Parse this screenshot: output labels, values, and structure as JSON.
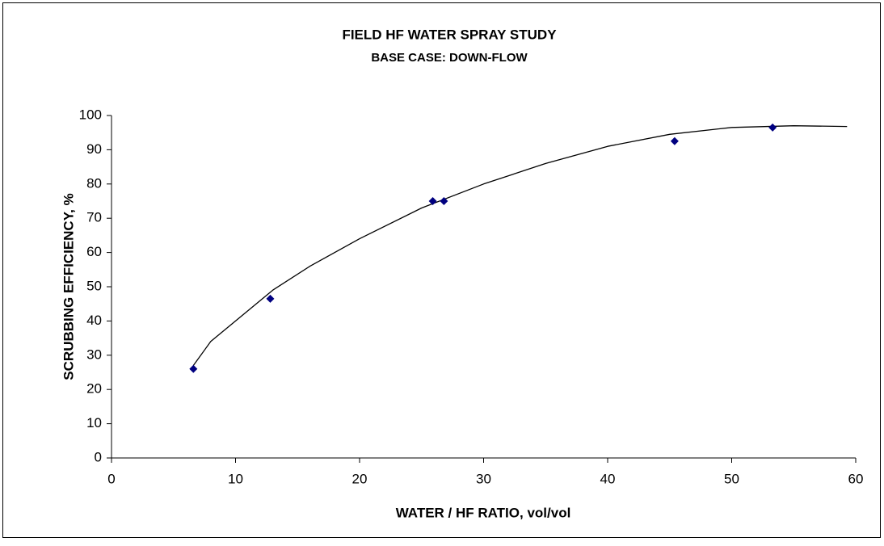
{
  "chart_data": {
    "type": "scatter",
    "title": "FIELD HF WATER SPRAY STUDY",
    "subtitle": "BASE CASE: DOWN-FLOW",
    "x_label": "WATER / HF RATIO, vol/vol",
    "y_label": "SCRUBBING EFFICIENCY, %",
    "x": [
      6.6,
      12.8,
      25.9,
      26.8,
      45.4,
      53.3
    ],
    "values": [
      26,
      46.5,
      75,
      75,
      92.5,
      96.5
    ],
    "color": "#000080",
    "trendline": {
      "x": [
        6.6,
        8,
        10,
        13,
        16,
        20,
        25,
        30,
        35,
        40,
        45,
        50,
        55,
        59.3
      ],
      "values": [
        27,
        34,
        40,
        49,
        56,
        64,
        73,
        80,
        86,
        91,
        94.5,
        96.5,
        97,
        96.8
      ],
      "color": "#000000"
    },
    "xlim": [
      0,
      60
    ],
    "xticks": [
      0,
      10,
      20,
      30,
      40,
      50,
      60
    ],
    "ylim": [
      0,
      100
    ],
    "yticks": [
      0,
      10,
      20,
      30,
      40,
      50,
      60,
      70,
      80,
      90,
      100
    ],
    "grid": false
  }
}
